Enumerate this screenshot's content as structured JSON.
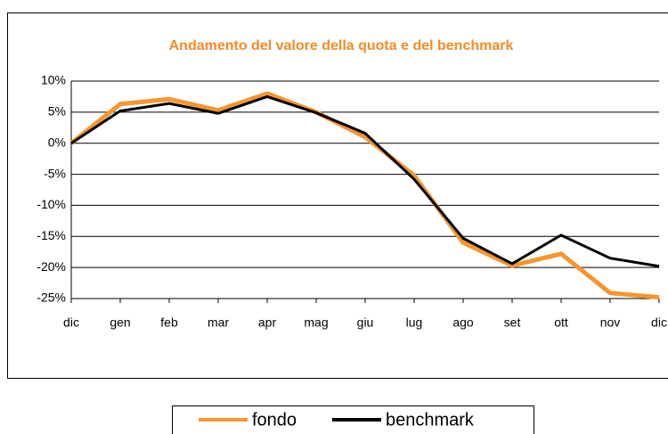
{
  "chart_data": {
    "type": "line",
    "title": "Andamento del valore della quota e del benchmark",
    "categories": [
      "dic",
      "gen",
      "feb",
      "mar",
      "apr",
      "mag",
      "giu",
      "lug",
      "ago",
      "set",
      "ott",
      "nov",
      "dic"
    ],
    "series": [
      {
        "name": "fondo",
        "color": "#f5962f",
        "values": [
          0,
          6.3,
          7.1,
          5.3,
          8.0,
          5.0,
          1.0,
          -5.2,
          -16.0,
          -19.7,
          -17.8,
          -24.1,
          -24.8
        ]
      },
      {
        "name": "benchmark",
        "color": "#000000",
        "values": [
          0,
          5.2,
          6.4,
          4.8,
          7.5,
          4.9,
          1.6,
          -5.8,
          -15.3,
          -19.4,
          -14.8,
          -18.5,
          -19.8
        ]
      }
    ],
    "ylim": [
      -25,
      10
    ],
    "yticks": [
      {
        "value": 10,
        "label": "10%"
      },
      {
        "value": 5,
        "label": "5%"
      },
      {
        "value": 0,
        "label": "0%"
      },
      {
        "value": -5,
        "label": "-5%"
      },
      {
        "value": -10,
        "label": "-10%"
      },
      {
        "value": -15,
        "label": "-15%"
      },
      {
        "value": -20,
        "label": "-20%"
      },
      {
        "value": -25,
        "label": "-25%"
      }
    ],
    "grid": true
  }
}
